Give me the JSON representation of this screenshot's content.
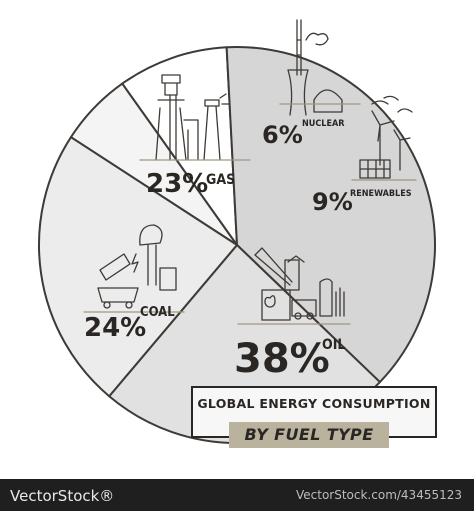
{
  "chart_data": {
    "type": "pie",
    "title": "GLOBAL ENERGY CONSUMPTION",
    "subtitle": "BY FUEL TYPE",
    "slices": [
      {
        "label": "NUCLEAR",
        "value": 6,
        "display": "6%",
        "color": "#f4f4f4"
      },
      {
        "label": "RENEWABLES",
        "value": 9,
        "display": "9%",
        "color": "#ffffff"
      },
      {
        "label": "OIL",
        "value": 38,
        "display": "38%",
        "color": "#d6d6d6"
      },
      {
        "label": "COAL",
        "value": 24,
        "display": "24%",
        "color": "#e1e1e1"
      },
      {
        "label": "GAS",
        "value": 23,
        "display": "23%",
        "color": "#ececec"
      }
    ]
  },
  "footer": {
    "left": "VectorStock®",
    "right": "VectorStock.com/43455123"
  },
  "colors": {
    "outline": "#3e3a36",
    "accent": "#b9b39e",
    "text": "#2a2623"
  }
}
